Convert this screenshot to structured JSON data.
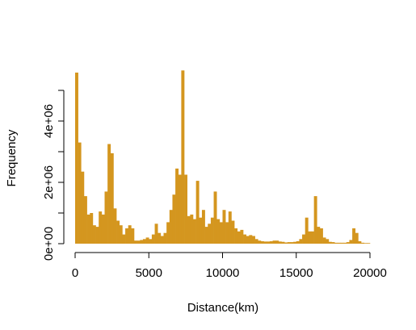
{
  "chart_data": {
    "type": "bar",
    "title": "",
    "xlabel": "Distance(km)",
    "ylabel": "Frequency",
    "xlim": [
      0,
      20000
    ],
    "ylim": [
      0,
      5000000
    ],
    "xticks": [
      0,
      5000,
      10000,
      15000,
      20000
    ],
    "xtick_labels": [
      "0",
      "5000",
      "10000",
      "15000",
      "20000"
    ],
    "yticks": [
      0,
      1000000,
      2000000,
      3000000,
      4000000,
      5000000
    ],
    "ytick_labels": [
      "0e+00",
      "",
      "2e+06",
      "",
      "4e+06",
      ""
    ],
    "bar_color": "#d4961f",
    "grid": false,
    "series": [
      {
        "bin_width": 200,
        "bin_starts": [
          0,
          200,
          400,
          600,
          800,
          1000,
          1200,
          1400,
          1600,
          1800,
          2000,
          2200,
          2400,
          2600,
          2800,
          3000,
          3200,
          3400,
          3600,
          3800,
          4000,
          4200,
          4400,
          4600,
          4800,
          5000,
          5200,
          5400,
          5600,
          5800,
          6000,
          6200,
          6400,
          6600,
          6800,
          7000,
          7200,
          7400,
          7600,
          7800,
          8000,
          8200,
          8400,
          8600,
          8800,
          9000,
          9200,
          9400,
          9600,
          9800,
          10000,
          10200,
          10400,
          10600,
          10800,
          11000,
          11200,
          11400,
          11600,
          11800,
          12000,
          12200,
          12400,
          12600,
          12800,
          13000,
          13200,
          13400,
          13600,
          13800,
          14000,
          14200,
          14400,
          14600,
          14800,
          15000,
          15200,
          15400,
          15600,
          15800,
          16000,
          16200,
          16400,
          16600,
          16800,
          17000,
          17200,
          17400,
          17600,
          17800,
          18000,
          18200,
          18400,
          18600,
          18800,
          19000,
          19200,
          19400,
          19600,
          19800
        ],
        "values": [
          5580000,
          3300000,
          2350000,
          1550000,
          950000,
          1000000,
          600000,
          550000,
          1050000,
          950000,
          1700000,
          3250000,
          2950000,
          1150000,
          750000,
          600000,
          300000,
          500000,
          600000,
          500000,
          100000,
          100000,
          120000,
          150000,
          200000,
          150000,
          300000,
          650000,
          350000,
          250000,
          350000,
          700000,
          1100000,
          1600000,
          2450000,
          2250000,
          5650000,
          2250000,
          900000,
          950000,
          800000,
          2050000,
          850000,
          1100000,
          550000,
          650000,
          850000,
          1700000,
          800000,
          700000,
          1100000,
          700000,
          1050000,
          750000,
          500000,
          400000,
          450000,
          300000,
          250000,
          280000,
          250000,
          150000,
          100000,
          80000,
          70000,
          70000,
          80000,
          100000,
          100000,
          70000,
          60000,
          40000,
          50000,
          50000,
          60000,
          80000,
          150000,
          300000,
          850000,
          400000,
          400000,
          1550000,
          550000,
          500000,
          200000,
          150000,
          60000,
          50000,
          30000,
          30000,
          30000,
          30000,
          50000,
          120000,
          500000,
          350000,
          80000,
          30000,
          20000,
          20000
        ]
      }
    ]
  }
}
